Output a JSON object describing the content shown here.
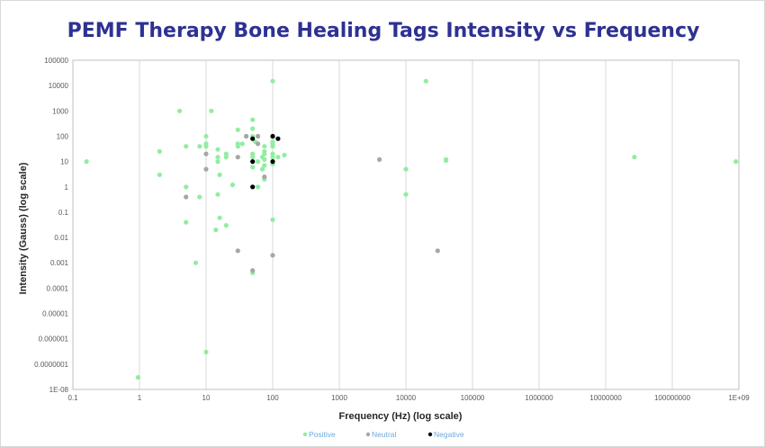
{
  "colors": {
    "Positive": "#90eea0",
    "Neutral": "#a6a6a6",
    "Negative": "#000000"
  },
  "chart_data": {
    "type": "scatter",
    "title": "PEMF Therapy Bone Healing Tags Intensity vs Frequency",
    "xlabel": "Frequency (Hz) (log scale)",
    "ylabel": "Intensity (Gauss) (log scale)",
    "x_scale": "log",
    "y_scale": "log",
    "xlim": [
      0.1,
      1000000000
    ],
    "ylim": [
      1e-08,
      100000
    ],
    "x_ticks": [
      "0.1",
      "1",
      "10",
      "100",
      "1000",
      "10000",
      "100000",
      "1000000",
      "10000000",
      "100000000",
      "1E+09"
    ],
    "y_ticks": [
      "100000",
      "10000",
      "1000",
      "100",
      "10",
      "1",
      "0.1",
      "0.01",
      "0.001",
      "0.0001",
      "0.00001",
      "0.000001",
      "0.0000001",
      "1E-08"
    ],
    "grid": "vertical-major",
    "legend_position": "bottom",
    "series": [
      {
        "name": "Positive",
        "points": [
          [
            0.16,
            10
          ],
          [
            0.95,
            3e-08
          ],
          [
            2,
            25
          ],
          [
            2,
            3
          ],
          [
            4,
            1000
          ],
          [
            5,
            40
          ],
          [
            5,
            1
          ],
          [
            5,
            0.04
          ],
          [
            7,
            0.001
          ],
          [
            8,
            40
          ],
          [
            8,
            0.4
          ],
          [
            10,
            100
          ],
          [
            10,
            50
          ],
          [
            10,
            40
          ],
          [
            10,
            3e-07
          ],
          [
            12,
            1000
          ],
          [
            15,
            30
          ],
          [
            15,
            15
          ],
          [
            15,
            10
          ],
          [
            15,
            0.5
          ],
          [
            16,
            3
          ],
          [
            16,
            0.06
          ],
          [
            14,
            0.02
          ],
          [
            20,
            20
          ],
          [
            20,
            15
          ],
          [
            20,
            0.03
          ],
          [
            25,
            1.2
          ],
          [
            30,
            50
          ],
          [
            30,
            40
          ],
          [
            30,
            180
          ],
          [
            35,
            50
          ],
          [
            40,
            100
          ],
          [
            50,
            450
          ],
          [
            50,
            200
          ],
          [
            50,
            100
          ],
          [
            50,
            20
          ],
          [
            50,
            15
          ],
          [
            50,
            6
          ],
          [
            50,
            0.0004
          ],
          [
            55,
            60
          ],
          [
            60,
            10
          ],
          [
            60,
            1
          ],
          [
            70,
            15
          ],
          [
            70,
            5
          ],
          [
            75,
            40
          ],
          [
            75,
            25
          ],
          [
            75,
            20
          ],
          [
            75,
            12
          ],
          [
            75,
            7
          ],
          [
            75,
            2
          ],
          [
            100,
            15000
          ],
          [
            100,
            100
          ],
          [
            100,
            60
          ],
          [
            100,
            50
          ],
          [
            100,
            40
          ],
          [
            100,
            20
          ],
          [
            100,
            15
          ],
          [
            100,
            8
          ],
          [
            100,
            0.05
          ],
          [
            120,
            15
          ],
          [
            150,
            18
          ],
          [
            10000,
            5
          ],
          [
            10000,
            0.5
          ],
          [
            20000,
            15000
          ],
          [
            40000,
            12
          ],
          [
            40000,
            11
          ],
          [
            27000000,
            15
          ],
          [
            900000000,
            10
          ]
        ]
      },
      {
        "name": "Neutral",
        "points": [
          [
            5,
            0.4
          ],
          [
            10,
            20
          ],
          [
            10,
            5
          ],
          [
            30,
            15
          ],
          [
            30,
            0.003
          ],
          [
            40,
            100
          ],
          [
            50,
            0.0005
          ],
          [
            60,
            100
          ],
          [
            60,
            50
          ],
          [
            75,
            2.5
          ],
          [
            100,
            0.002
          ],
          [
            4000,
            12
          ],
          [
            30000,
            0.003
          ]
        ]
      },
      {
        "name": "Negative",
        "points": [
          [
            50,
            80
          ],
          [
            50,
            10
          ],
          [
            50,
            1
          ],
          [
            100,
            100
          ],
          [
            100,
            10
          ],
          [
            120,
            80
          ]
        ]
      }
    ]
  }
}
